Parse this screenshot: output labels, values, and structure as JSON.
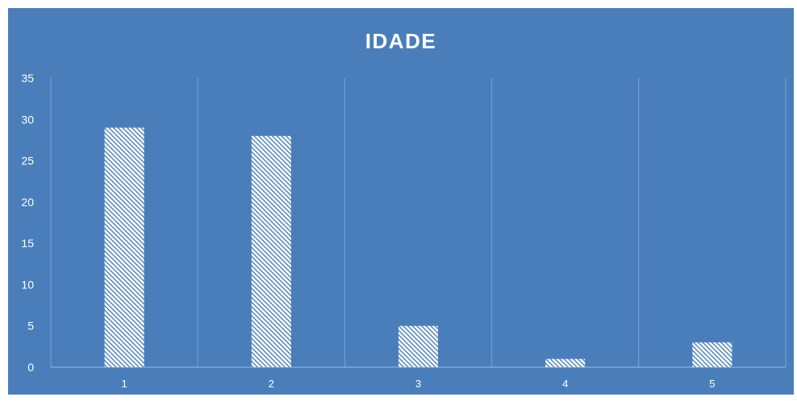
{
  "colors": {
    "background": "#4a7ebb",
    "bar_fill": "#ffffff",
    "bar_hatch": "#4a7ebb",
    "gridline": "#7aa3d4",
    "text": "#ffffff"
  },
  "chart_data": {
    "type": "bar",
    "title": "IDADE",
    "xlabel": "",
    "ylabel": "",
    "categories": [
      "1",
      "2",
      "3",
      "4",
      "5"
    ],
    "values": [
      29,
      28,
      5,
      1,
      3
    ],
    "ylim": [
      0,
      35
    ],
    "yticks": [
      "0",
      "5",
      "10",
      "15",
      "20",
      "25",
      "30",
      "35"
    ],
    "grid": "vertical",
    "legend": "none",
    "bar_pattern": "diagonal-hatch"
  }
}
